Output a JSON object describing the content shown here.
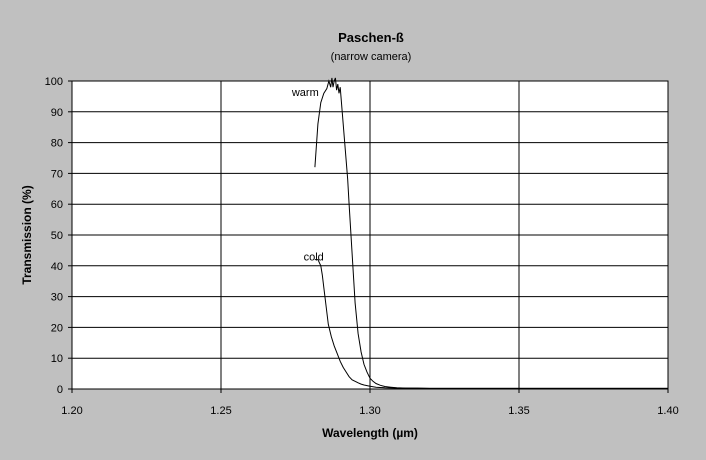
{
  "chart_data": {
    "type": "line",
    "title": "Paschen-ß",
    "subtitle": "(narrow camera)",
    "xlabel": "Wavelength (µm)",
    "ylabel": "Transmission (%)",
    "xlim": [
      1.2,
      1.4
    ],
    "ylim": [
      0,
      100
    ],
    "x_ticks": [
      1.2,
      1.25,
      1.3,
      1.35,
      1.4
    ],
    "x_tick_labels": [
      "1.20",
      "1.25",
      "1.30",
      "1.35",
      "1.40"
    ],
    "y_ticks": [
      0,
      10,
      20,
      30,
      40,
      50,
      60,
      70,
      80,
      90,
      100
    ],
    "y_tick_labels": [
      "0",
      "10",
      "20",
      "30",
      "40",
      "50",
      "60",
      "70",
      "80",
      "90",
      "100"
    ],
    "grid": true,
    "legend": "none",
    "background_color": "#c0c0c0",
    "plot_background_color": "#ffffff",
    "series": [
      {
        "name": "warm",
        "label_at": [
          1.2828,
          96.5
        ],
        "color": "#000000",
        "x": [
          1.2815,
          1.2825,
          1.2835,
          1.2845,
          1.2855,
          1.2862,
          1.2868,
          1.2872,
          1.2876,
          1.288,
          1.2884,
          1.2888,
          1.2892,
          1.2896,
          1.29,
          1.2905,
          1.291,
          1.2915,
          1.292,
          1.2925,
          1.293,
          1.2935,
          1.294,
          1.2945,
          1.295,
          1.296,
          1.297,
          1.298,
          1.299,
          1.3,
          1.301,
          1.302,
          1.3035,
          1.305,
          1.307,
          1.309,
          1.312,
          1.316,
          1.32,
          1.33,
          1.34,
          1.35,
          1.36,
          1.37,
          1.38,
          1.39,
          1.4
        ],
        "y": [
          72,
          86,
          93,
          96,
          97.5,
          100,
          98,
          101,
          98,
          100,
          101,
          97,
          99,
          96,
          98,
          92,
          86,
          80,
          74,
          68,
          60,
          52,
          44,
          36,
          28,
          18,
          12,
          8,
          5.5,
          3.5,
          2.5,
          1.8,
          1.2,
          0.8,
          0.6,
          0.4,
          0.3,
          0.3,
          0.2,
          0.2,
          0.2,
          0.2,
          0.2,
          0.2,
          0.2,
          0.2,
          0.2
        ]
      },
      {
        "name": "cold",
        "label_at": [
          1.2845,
          43
        ],
        "color": "#000000",
        "x": [
          1.2815,
          1.2825,
          1.2835,
          1.284,
          1.2845,
          1.285,
          1.2855,
          1.286,
          1.287,
          1.288,
          1.289,
          1.29,
          1.291,
          1.292,
          1.293,
          1.294,
          1.295,
          1.296,
          1.297,
          1.298,
          1.3,
          1.302,
          1.305,
          1.31,
          1.32,
          1.33,
          1.35,
          1.4
        ],
        "y": [
          42,
          42,
          40,
          37,
          33,
          29,
          25,
          21,
          17,
          14,
          11.5,
          9,
          7,
          5.5,
          4,
          3,
          2.5,
          2,
          1.6,
          1.3,
          0.9,
          0.6,
          0.4,
          0.3,
          0.2,
          0.2,
          0.2,
          0.2
        ]
      }
    ]
  }
}
